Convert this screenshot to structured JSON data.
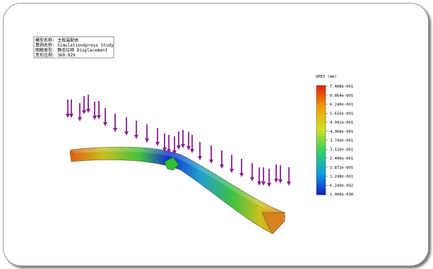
{
  "info_box": {
    "lines": [
      "模型名称: 主板装配体",
      "算例名称: SimulationXpress Study",
      "图解类型: 静态位移 Displacement",
      "变形比例: 360.929"
    ]
  },
  "legend": {
    "title": "URES (mm)",
    "labels": [
      "7.488e-001",
      "6.864e-001",
      "6.240e-001",
      "5.616e-001",
      "4.992e-001",
      "4.368e-001",
      "3.744e-001",
      "3.120e-001",
      "2.496e-001",
      "1.872e-001",
      "1.248e-001",
      "6.240e-002",
      "1.000e-030"
    ]
  }
}
